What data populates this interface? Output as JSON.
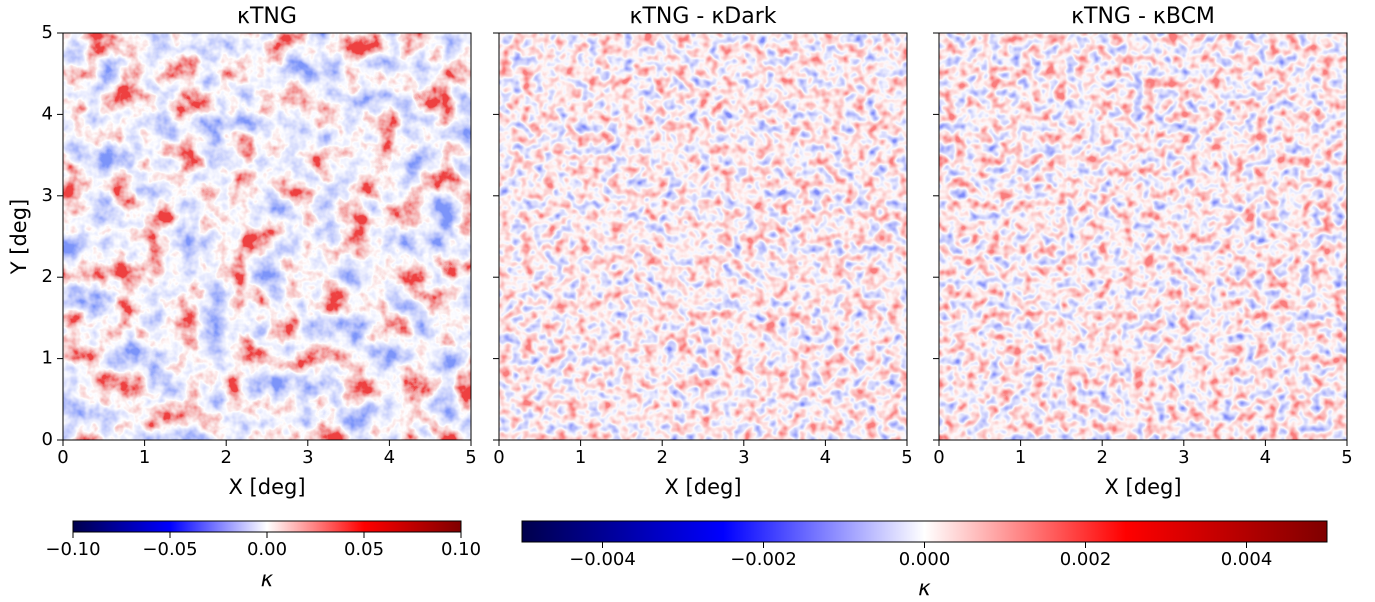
{
  "chart_data": [
    {
      "type": "heatmap",
      "title": "κTNG",
      "xlabel": "X [deg]",
      "ylabel": "Y [deg]",
      "xlim": [
        0,
        5
      ],
      "ylim": [
        0,
        5
      ],
      "xticks": [
        0,
        1,
        2,
        3,
        4,
        5
      ],
      "yticks": [
        0,
        1,
        2,
        3,
        4,
        5
      ],
      "colorbar": 0
    },
    {
      "type": "heatmap",
      "title": "κTNG - κDark",
      "xlabel": "X [deg]",
      "xlim": [
        0,
        5
      ],
      "ylim": [
        0,
        5
      ],
      "xticks": [
        0,
        1,
        2,
        3,
        4,
        5
      ],
      "yticks": [
        0,
        1,
        2,
        3,
        4,
        5
      ],
      "sharey": true,
      "colorbar": 1
    },
    {
      "type": "heatmap",
      "title": "κTNG - κBCM",
      "xlabel": "X [deg]",
      "xlim": [
        0,
        5
      ],
      "ylim": [
        0,
        5
      ],
      "xticks": [
        0,
        1,
        2,
        3,
        4,
        5
      ],
      "yticks": [
        0,
        1,
        2,
        3,
        4,
        5
      ],
      "sharey": true,
      "colorbar": 1
    }
  ],
  "colorbars": [
    {
      "label": "κ",
      "lim": [
        -0.1,
        0.1
      ],
      "colors": [
        "#00004c",
        "#0000ff",
        "#ffffff",
        "#ff0000",
        "#7f0000"
      ],
      "ticks": [
        {
          "value": -0.1,
          "label": "−0.10"
        },
        {
          "value": -0.05,
          "label": "−0.05"
        },
        {
          "value": 0,
          "label": "0.00"
        },
        {
          "value": 0.05,
          "label": "0.05"
        },
        {
          "value": 0.1,
          "label": "0.10"
        }
      ]
    },
    {
      "label": "κ",
      "lim": [
        -0.005,
        0.005
      ],
      "colors": [
        "#00004c",
        "#0000ff",
        "#ffffff",
        "#ff0000",
        "#7f0000"
      ],
      "ticks": [
        {
          "value": -0.004,
          "label": "−0.004"
        },
        {
          "value": -0.002,
          "label": "−0.002"
        },
        {
          "value": 0,
          "label": "0.000"
        },
        {
          "value": 0.002,
          "label": "0.002"
        },
        {
          "value": 0.004,
          "label": "0.004"
        }
      ]
    }
  ]
}
